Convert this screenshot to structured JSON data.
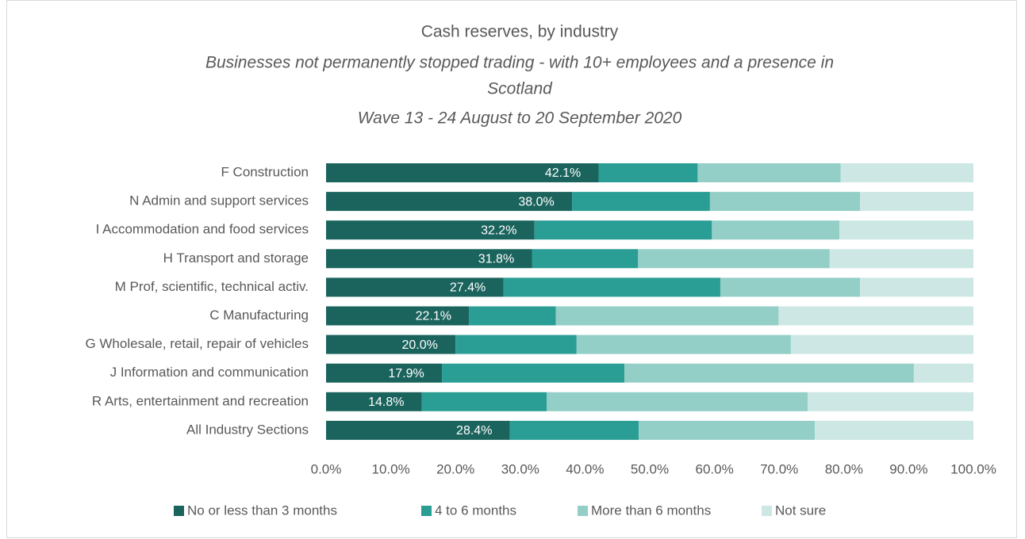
{
  "chart_data": {
    "type": "stacked_bar_horizontal",
    "title": "Cash reserves, by industry",
    "subtitle": [
      "Businesses not permanently stopped trading -  with 10+ employees and a presence in",
      "Scotland",
      "Wave 13 - 24 August to 20 September 2020"
    ],
    "categories": [
      "F Construction",
      "N Admin and support services",
      "I Accommodation and food services",
      "H Transport and storage",
      "M Prof, scientific, technical activ.",
      "C Manufacturing",
      "G Wholesale, retail, repair of vehicles",
      "J Information and communication",
      "R Arts, entertainment and recreation",
      "All Industry Sections"
    ],
    "series": [
      {
        "name": "No or less than 3 months",
        "color": "#1b645e",
        "values": [
          42.1,
          38.0,
          32.2,
          31.8,
          27.4,
          22.1,
          20.0,
          17.9,
          14.8,
          28.4
        ],
        "value_labels": [
          "42.1%",
          "38.0%",
          "32.2%",
          "31.8%",
          "27.4%",
          "22.1%",
          "20.0%",
          "17.9%",
          "14.8%",
          "28.4%"
        ]
      },
      {
        "name": "4 to 6 months",
        "color": "#2a9d94",
        "values": [
          15.3,
          21.3,
          27.4,
          16.4,
          33.5,
          13.4,
          18.7,
          28.2,
          19.3,
          19.9
        ]
      },
      {
        "name": "More than 6 months",
        "color": "#93cfc7",
        "values": [
          22.1,
          23.2,
          19.7,
          29.6,
          21.6,
          34.4,
          33.1,
          44.7,
          40.3,
          27.2
        ]
      },
      {
        "name": "Not sure",
        "color": "#cde8e4",
        "values": [
          20.5,
          17.5,
          20.7,
          22.2,
          17.5,
          30.1,
          28.2,
          9.2,
          25.6,
          24.5
        ]
      }
    ],
    "xlim": [
      0,
      100
    ],
    "xticks": [
      {
        "value": 0,
        "label": "0.0%"
      },
      {
        "value": 10,
        "label": "10.0%"
      },
      {
        "value": 20,
        "label": "20.0%"
      },
      {
        "value": 30,
        "label": "30.0%"
      },
      {
        "value": 40,
        "label": "40.0%"
      },
      {
        "value": 50,
        "label": "50.0%"
      },
      {
        "value": 60,
        "label": "60.0%"
      },
      {
        "value": 70,
        "label": "70.0%"
      },
      {
        "value": 80,
        "label": "80.0%"
      },
      {
        "value": 90,
        "label": "90.0%"
      },
      {
        "value": 100,
        "label": "100.0%"
      }
    ],
    "legend": "bottom"
  }
}
